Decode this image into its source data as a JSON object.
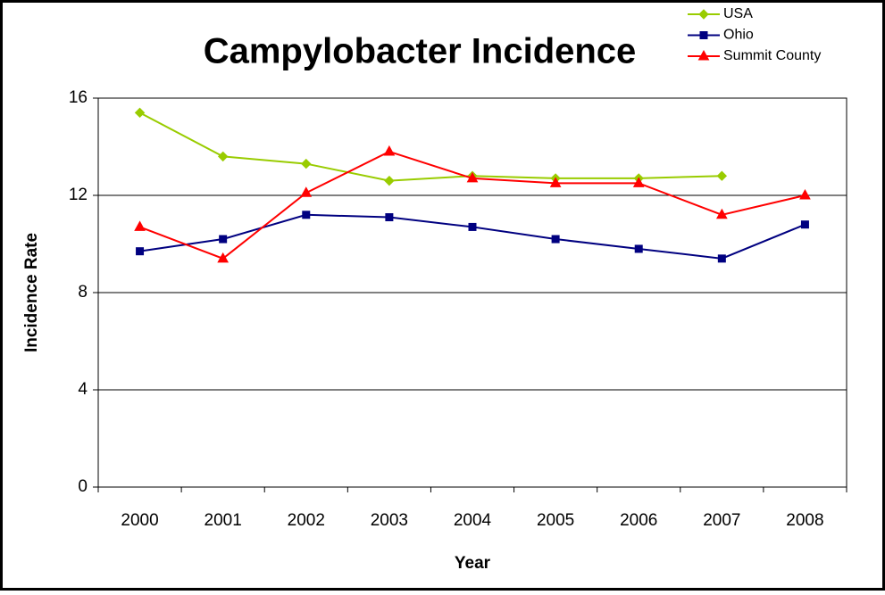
{
  "chart_data": {
    "type": "line",
    "title": "Campylobacter Incidence",
    "xlabel": "Year",
    "ylabel": "Incidence Rate",
    "categories": [
      "2000",
      "2001",
      "2002",
      "2003",
      "2004",
      "2005",
      "2006",
      "2007",
      "2008"
    ],
    "series": [
      {
        "name": "USA",
        "color": "#99cc00",
        "marker": "diamond",
        "values": [
          15.4,
          13.6,
          13.3,
          12.6,
          12.8,
          12.7,
          12.7,
          12.8,
          null
        ]
      },
      {
        "name": "Ohio",
        "color": "#000080",
        "marker": "square",
        "values": [
          9.7,
          10.2,
          11.2,
          11.1,
          10.7,
          10.2,
          9.8,
          9.4,
          10.8
        ]
      },
      {
        "name": "Summit County",
        "color": "#ff0000",
        "marker": "triangle",
        "values": [
          10.7,
          9.4,
          12.1,
          13.8,
          12.7,
          12.5,
          12.5,
          11.2,
          12.0
        ]
      }
    ],
    "ylim": [
      0,
      16
    ],
    "yticks": [
      0,
      4,
      8,
      12,
      16
    ],
    "grid": true,
    "legend": "top-right"
  }
}
